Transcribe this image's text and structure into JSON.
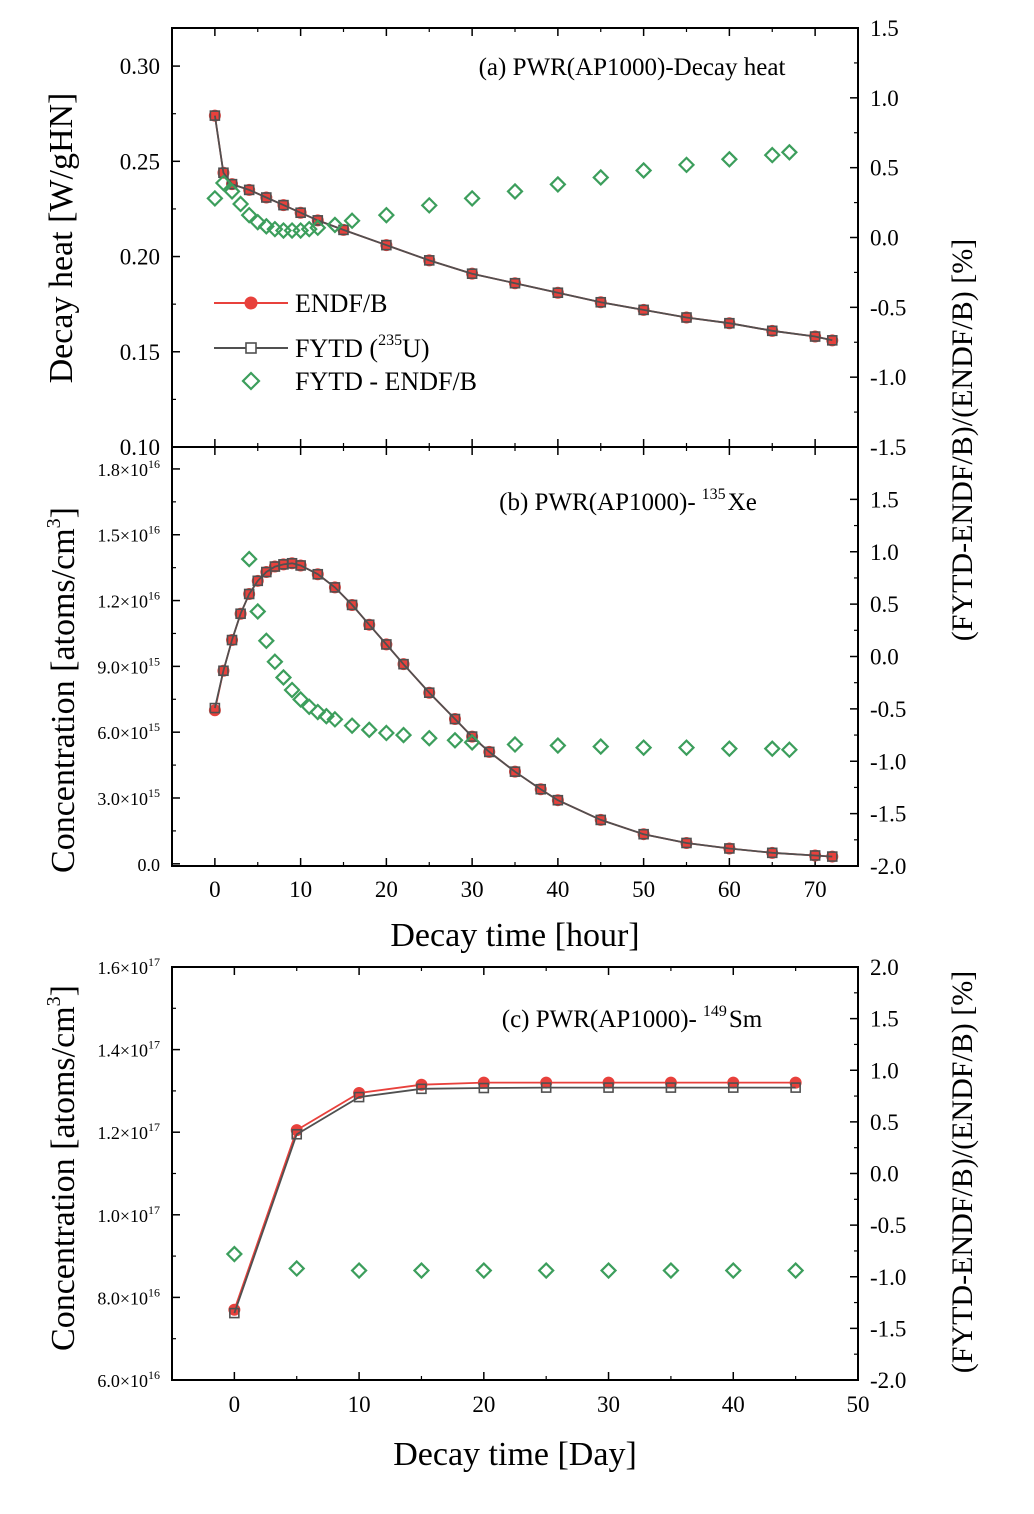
{
  "chart_data": [
    {
      "id": "a",
      "type": "line",
      "title": "(a) PWR(AP1000)-Decay heat",
      "xlabel": "",
      "xlim": [
        -5,
        75
      ],
      "xticks": [
        "0",
        "10",
        "20",
        "30",
        "40",
        "50",
        "60",
        "70"
      ],
      "ylabel": "Decay heat [W/gHN]",
      "ylim": [
        0.1,
        0.32
      ],
      "yticks": [
        "0.10",
        "0.15",
        "0.20",
        "0.25",
        "0.30"
      ],
      "y2label": "(FYTD-ENDF/B)/(ENDF/B)  [%]",
      "y2lim": [
        -1.5,
        1.5
      ],
      "y2ticks": [
        "-1.5",
        "-1.0",
        "-0.5",
        "0.0",
        "0.5",
        "1.0",
        "1.5"
      ],
      "legend": {
        "location": "middle-left",
        "entries": [
          "ENDF/B",
          "FYTD (",
          "235",
          "U)",
          "FYTD - ENDF/B"
        ]
      },
      "series": [
        {
          "name": "ENDF/B",
          "axis": "left",
          "color": "#e8413c",
          "marker": "circle",
          "x": [
            0,
            1,
            2,
            4,
            6,
            8,
            10,
            12,
            15,
            20,
            25,
            30,
            35,
            40,
            45,
            50,
            55,
            60,
            65,
            70,
            72
          ],
          "y": [
            0.274,
            0.244,
            0.238,
            0.235,
            0.231,
            0.227,
            0.223,
            0.219,
            0.214,
            0.206,
            0.198,
            0.191,
            0.186,
            0.181,
            0.176,
            0.172,
            0.168,
            0.165,
            0.161,
            0.158,
            0.156
          ]
        },
        {
          "name": "FYTD (235U)",
          "axis": "left",
          "color": "#505050",
          "marker": "square",
          "x": [
            0,
            1,
            2,
            4,
            6,
            8,
            10,
            12,
            15,
            20,
            25,
            30,
            35,
            40,
            45,
            50,
            55,
            60,
            65,
            70,
            72
          ],
          "y": [
            0.274,
            0.244,
            0.238,
            0.235,
            0.231,
            0.227,
            0.223,
            0.219,
            0.214,
            0.206,
            0.198,
            0.191,
            0.186,
            0.181,
            0.176,
            0.172,
            0.168,
            0.165,
            0.161,
            0.158,
            0.156
          ]
        },
        {
          "name": "FYTD - ENDF/B",
          "axis": "right",
          "color": "#3c9e5c",
          "marker": "diamond",
          "x": [
            0,
            1,
            2,
            3,
            4,
            5,
            6,
            7,
            8,
            9,
            10,
            11,
            12,
            14,
            16,
            20,
            25,
            30,
            35,
            40,
            45,
            50,
            55,
            60,
            65,
            67
          ],
          "y": [
            0.28,
            0.39,
            0.33,
            0.24,
            0.16,
            0.11,
            0.08,
            0.06,
            0.05,
            0.05,
            0.05,
            0.06,
            0.07,
            0.09,
            0.12,
            0.16,
            0.23,
            0.28,
            0.33,
            0.38,
            0.43,
            0.48,
            0.52,
            0.56,
            0.59,
            0.61
          ]
        }
      ]
    },
    {
      "id": "b",
      "type": "line",
      "title": "(b) PWR(AP1000)-",
      "title_sup": "135",
      "title_tail": "Xe",
      "xlabel": "Decay time [hour]",
      "xlim": [
        -5,
        75
      ],
      "xticks": [
        "0",
        "10",
        "20",
        "30",
        "40",
        "50",
        "60",
        "70"
      ],
      "ylabel": "Concentration [atoms/cm",
      "ylabel_sup": "3",
      "ylabel_tail": "]",
      "ylim": [
        -100000000000000.0,
        1.9e+16
      ],
      "yticks": [
        {
          "m": "0.0",
          "e": ""
        },
        {
          "m": "3.0×10",
          "e": "15"
        },
        {
          "m": "6.0×10",
          "e": "15"
        },
        {
          "m": "9.0×10",
          "e": "15"
        },
        {
          "m": "1.2×10",
          "e": "16"
        },
        {
          "m": "1.5×10",
          "e": "16"
        },
        {
          "m": "1.8×10",
          "e": "16"
        }
      ],
      "y2label": "(FYTD-ENDF/B)/(ENDF/B)  [%]",
      "y2lim": [
        -2.0,
        2.0
      ],
      "y2ticks": [
        "-2.0",
        "-1.5",
        "-1.0",
        "-0.5",
        "0.0",
        "0.5",
        "1.0",
        "1.5"
      ],
      "series": [
        {
          "name": "ENDF/B",
          "axis": "left",
          "color": "#e8413c",
          "marker": "circle",
          "x": [
            0,
            1,
            2,
            3,
            4,
            5,
            6,
            7,
            8,
            9,
            10,
            12,
            14,
            16,
            18,
            20,
            22,
            25,
            28,
            30,
            32,
            35,
            38,
            40,
            45,
            50,
            55,
            60,
            65,
            70,
            72
          ],
          "y": [
            7000000000000000.0,
            8800000000000000.0,
            1.02e+16,
            1.14e+16,
            1.23e+16,
            1.29e+16,
            1.33e+16,
            1.355e+16,
            1.365e+16,
            1.37e+16,
            1.36e+16,
            1.32e+16,
            1.26e+16,
            1.18e+16,
            1.09e+16,
            1e+16,
            9100000000000000.0,
            7800000000000000.0,
            6600000000000000.0,
            5800000000000000.0,
            5100000000000000.0,
            4200000000000000.0,
            3400000000000000.0,
            2900000000000000.0,
            2000000000000000.0,
            1350000000000000.0,
            950000000000000.0,
            700000000000000.0,
            500000000000000.0,
            380000000000000.0,
            330000000000000.0
          ]
        },
        {
          "name": "FYTD (235U)",
          "axis": "left",
          "color": "#505050",
          "marker": "square",
          "x": [
            0,
            1,
            2,
            3,
            4,
            5,
            6,
            7,
            8,
            9,
            10,
            12,
            14,
            16,
            18,
            20,
            22,
            25,
            28,
            30,
            32,
            35,
            38,
            40,
            45,
            50,
            55,
            60,
            65,
            70,
            72
          ],
          "y": [
            7100000000000000.0,
            8800000000000000.0,
            1.02e+16,
            1.14e+16,
            1.23e+16,
            1.29e+16,
            1.33e+16,
            1.355e+16,
            1.365e+16,
            1.37e+16,
            1.36e+16,
            1.32e+16,
            1.26e+16,
            1.18e+16,
            1.09e+16,
            1e+16,
            9100000000000000.0,
            7800000000000000.0,
            6600000000000000.0,
            5800000000000000.0,
            5100000000000000.0,
            4200000000000000.0,
            3400000000000000.0,
            2900000000000000.0,
            2000000000000000.0,
            1350000000000000.0,
            950000000000000.0,
            700000000000000.0,
            500000000000000.0,
            380000000000000.0,
            330000000000000.0
          ]
        },
        {
          "name": "FYTD - ENDF/B",
          "axis": "right",
          "color": "#3c9e5c",
          "marker": "diamond",
          "x": [
            4,
            5,
            6,
            7,
            8,
            9,
            10,
            11,
            12,
            13,
            14,
            16,
            18,
            20,
            22,
            25,
            28,
            30,
            35,
            40,
            45,
            50,
            55,
            60,
            65,
            67
          ],
          "y": [
            0.93,
            0.43,
            0.15,
            -0.05,
            -0.2,
            -0.32,
            -0.41,
            -0.48,
            -0.53,
            -0.57,
            -0.6,
            -0.66,
            -0.7,
            -0.73,
            -0.75,
            -0.78,
            -0.8,
            -0.82,
            -0.84,
            -0.85,
            -0.86,
            -0.87,
            -0.87,
            -0.88,
            -0.88,
            -0.89
          ]
        }
      ]
    },
    {
      "id": "c",
      "type": "line",
      "title": "(c) PWR(AP1000)-",
      "title_sup": "149",
      "title_tail": "Sm",
      "xlabel": "Decay time [Day]",
      "xlim": [
        -5,
        50
      ],
      "xticks": [
        "0",
        "10",
        "20",
        "30",
        "40",
        "50"
      ],
      "ylabel": "Concentration [atoms/cm",
      "ylabel_sup": "3",
      "ylabel_tail": "]",
      "ylim": [
        6e+16,
        1.6e+17
      ],
      "yticks": [
        {
          "m": "6.0×10",
          "e": "16"
        },
        {
          "m": "8.0×10",
          "e": "16"
        },
        {
          "m": "1.0×10",
          "e": "17"
        },
        {
          "m": "1.2×10",
          "e": "17"
        },
        {
          "m": "1.4×10",
          "e": "17"
        },
        {
          "m": "1.6×10",
          "e": "17"
        }
      ],
      "y2label": "(FYTD-ENDF/B)/(ENDF/B)  [%]",
      "y2lim": [
        -2.0,
        2.0
      ],
      "y2ticks": [
        "-2.0",
        "-1.5",
        "-1.0",
        "-0.5",
        "0.0",
        "0.5",
        "1.0",
        "1.5",
        "2.0"
      ],
      "series": [
        {
          "name": "ENDF/B",
          "axis": "left",
          "color": "#e8413c",
          "marker": "circle",
          "x": [
            0,
            5,
            10,
            15,
            20,
            25,
            30,
            35,
            40,
            45
          ],
          "y": [
            7.7e+16,
            1.205e+17,
            1.295e+17,
            1.315e+17,
            1.32e+17,
            1.32e+17,
            1.32e+17,
            1.32e+17,
            1.32e+17,
            1.32e+17
          ]
        },
        {
          "name": "FYTD (235U)",
          "axis": "left",
          "color": "#505050",
          "marker": "square",
          "x": [
            0,
            5,
            10,
            15,
            20,
            25,
            30,
            35,
            40,
            45
          ],
          "y": [
            7.62e+16,
            1.195e+17,
            1.285e+17,
            1.305e+17,
            1.307e+17,
            1.308e+17,
            1.308e+17,
            1.308e+17,
            1.308e+17,
            1.308e+17
          ]
        },
        {
          "name": "FYTD - ENDF/B",
          "axis": "right",
          "color": "#3c9e5c",
          "marker": "diamond",
          "x": [
            0,
            5,
            10,
            15,
            20,
            25,
            30,
            35,
            40,
            45
          ],
          "y": [
            -0.78,
            -0.92,
            -0.94,
            -0.94,
            -0.94,
            -0.94,
            -0.94,
            -0.94,
            -0.94,
            -0.94
          ]
        }
      ]
    }
  ]
}
